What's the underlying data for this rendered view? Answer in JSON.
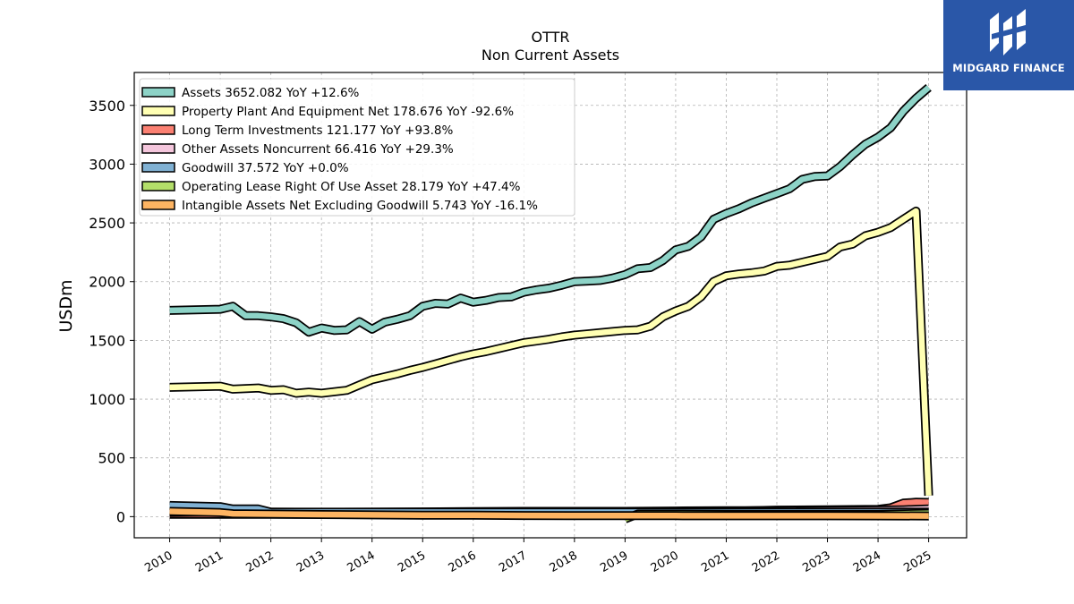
{
  "chart_data": {
    "type": "area",
    "title": "OTTR",
    "subtitle": "Non Current  Assets",
    "ylabel": "USDm",
    "xlabel": "",
    "ylim": [
      -180,
      3780
    ],
    "xlim": [
      2009.3,
      2025.75
    ],
    "yticks": [
      0,
      500,
      1000,
      1500,
      2000,
      2500,
      3000,
      3500
    ],
    "xticks": [
      "2010",
      "2011",
      "2012",
      "2013",
      "2014",
      "2015",
      "2016",
      "2017",
      "2018",
      "2019",
      "2020",
      "2021",
      "2022",
      "2023",
      "2024",
      "2025"
    ],
    "grid": true,
    "legend_position": "top-left",
    "series": [
      {
        "name": "Assets",
        "legend": "Assets  3652.082 YoY +12.6%",
        "color": "#8dd3c7",
        "points": [
          [
            2010.0,
            1755
          ],
          [
            2011.0,
            1765
          ],
          [
            2011.25,
            1790
          ],
          [
            2011.5,
            1710
          ],
          [
            2011.75,
            1710
          ],
          [
            2012.0,
            1700
          ],
          [
            2012.25,
            1685
          ],
          [
            2012.5,
            1650
          ],
          [
            2012.75,
            1570
          ],
          [
            2013.0,
            1605
          ],
          [
            2013.25,
            1585
          ],
          [
            2013.5,
            1590
          ],
          [
            2013.75,
            1660
          ],
          [
            2014.0,
            1595
          ],
          [
            2014.25,
            1655
          ],
          [
            2014.5,
            1680
          ],
          [
            2014.75,
            1710
          ],
          [
            2015.0,
            1790
          ],
          [
            2015.25,
            1815
          ],
          [
            2015.5,
            1810
          ],
          [
            2015.75,
            1860
          ],
          [
            2016.0,
            1825
          ],
          [
            2016.25,
            1840
          ],
          [
            2016.5,
            1865
          ],
          [
            2016.75,
            1870
          ],
          [
            2017.0,
            1910
          ],
          [
            2017.25,
            1930
          ],
          [
            2017.5,
            1945
          ],
          [
            2017.75,
            1970
          ],
          [
            2018.0,
            2000
          ],
          [
            2018.25,
            2005
          ],
          [
            2018.5,
            2010
          ],
          [
            2018.75,
            2030
          ],
          [
            2019.0,
            2060
          ],
          [
            2019.25,
            2110
          ],
          [
            2019.5,
            2120
          ],
          [
            2019.75,
            2180
          ],
          [
            2020.0,
            2270
          ],
          [
            2020.25,
            2300
          ],
          [
            2020.5,
            2380
          ],
          [
            2020.75,
            2530
          ],
          [
            2021.0,
            2580
          ],
          [
            2021.25,
            2620
          ],
          [
            2021.5,
            2670
          ],
          [
            2021.75,
            2710
          ],
          [
            2022.0,
            2750
          ],
          [
            2022.25,
            2790
          ],
          [
            2022.5,
            2870
          ],
          [
            2022.75,
            2895
          ],
          [
            2023.0,
            2900
          ],
          [
            2023.25,
            2980
          ],
          [
            2023.5,
            3080
          ],
          [
            2023.75,
            3170
          ],
          [
            2024.0,
            3230
          ],
          [
            2024.25,
            3310
          ],
          [
            2024.5,
            3450
          ],
          [
            2024.75,
            3560
          ],
          [
            2025.0,
            3652
          ]
        ]
      },
      {
        "name": "Property Plant And Equipment Net",
        "legend": "Property Plant And Equipment Net  178.676 YoY -92.6%",
        "color": "#ffffb3",
        "points": [
          [
            2010.0,
            1100
          ],
          [
            2011.0,
            1110
          ],
          [
            2011.25,
            1085
          ],
          [
            2011.75,
            1095
          ],
          [
            2012.0,
            1075
          ],
          [
            2012.25,
            1080
          ],
          [
            2012.5,
            1050
          ],
          [
            2012.75,
            1060
          ],
          [
            2013.0,
            1050
          ],
          [
            2013.5,
            1075
          ],
          [
            2013.75,
            1120
          ],
          [
            2014.0,
            1165
          ],
          [
            2014.25,
            1190
          ],
          [
            2014.5,
            1215
          ],
          [
            2014.75,
            1245
          ],
          [
            2015.0,
            1270
          ],
          [
            2015.25,
            1300
          ],
          [
            2015.5,
            1330
          ],
          [
            2015.75,
            1360
          ],
          [
            2016.0,
            1385
          ],
          [
            2016.25,
            1405
          ],
          [
            2016.5,
            1430
          ],
          [
            2016.75,
            1455
          ],
          [
            2017.0,
            1480
          ],
          [
            2017.25,
            1495
          ],
          [
            2017.5,
            1510
          ],
          [
            2017.75,
            1530
          ],
          [
            2018.0,
            1545
          ],
          [
            2018.25,
            1555
          ],
          [
            2018.5,
            1565
          ],
          [
            2018.75,
            1575
          ],
          [
            2019.0,
            1585
          ],
          [
            2019.25,
            1590
          ],
          [
            2019.5,
            1620
          ],
          [
            2019.75,
            1700
          ],
          [
            2020.0,
            1750
          ],
          [
            2020.25,
            1790
          ],
          [
            2020.5,
            1870
          ],
          [
            2020.75,
            2000
          ],
          [
            2021.0,
            2050
          ],
          [
            2021.25,
            2065
          ],
          [
            2021.5,
            2075
          ],
          [
            2021.75,
            2090
          ],
          [
            2022.0,
            2130
          ],
          [
            2022.25,
            2140
          ],
          [
            2022.5,
            2165
          ],
          [
            2022.75,
            2190
          ],
          [
            2023.0,
            2215
          ],
          [
            2023.25,
            2295
          ],
          [
            2023.5,
            2320
          ],
          [
            2023.75,
            2390
          ],
          [
            2024.0,
            2420
          ],
          [
            2024.25,
            2460
          ],
          [
            2024.5,
            2530
          ],
          [
            2024.75,
            2600
          ],
          [
            2025.0,
            179
          ]
        ]
      },
      {
        "name": "Long Term Investments",
        "legend": "Long Term Investments  121.177 YoY +93.8%",
        "color": "#fb8072",
        "points": [
          [
            2010.0,
            20
          ],
          [
            2012.0,
            20
          ],
          [
            2014.0,
            20
          ],
          [
            2016.0,
            22
          ],
          [
            2018.0,
            25
          ],
          [
            2020.0,
            30
          ],
          [
            2021.0,
            45
          ],
          [
            2022.0,
            55
          ],
          [
            2023.0,
            58
          ],
          [
            2024.0,
            62
          ],
          [
            2024.25,
            75
          ],
          [
            2024.5,
            115
          ],
          [
            2024.75,
            122
          ],
          [
            2025.0,
            121
          ]
        ]
      },
      {
        "name": "Other Assets Noncurrent",
        "legend": "Other Assets Noncurrent  66.416 YoY +29.3%",
        "color": "#f4c6dc",
        "points": [
          [
            2010.0,
            35
          ],
          [
            2011.0,
            40
          ],
          [
            2012.0,
            38
          ],
          [
            2013.0,
            36
          ],
          [
            2014.0,
            38
          ],
          [
            2015.0,
            40
          ],
          [
            2016.0,
            42
          ],
          [
            2017.0,
            45
          ],
          [
            2018.0,
            45
          ],
          [
            2019.0,
            45
          ],
          [
            2020.0,
            48
          ],
          [
            2021.0,
            50
          ],
          [
            2022.0,
            50
          ],
          [
            2023.0,
            52
          ],
          [
            2024.0,
            55
          ],
          [
            2024.5,
            58
          ],
          [
            2025.0,
            66
          ]
        ]
      },
      {
        "name": "Goodwill",
        "legend": "Goodwill  37.572 YoY +0.0%",
        "color": "#80b1d3",
        "points": [
          [
            2010.0,
            95
          ],
          [
            2011.0,
            85
          ],
          [
            2011.25,
            65
          ],
          [
            2011.75,
            65
          ],
          [
            2012.0,
            38
          ],
          [
            2016.0,
            38
          ],
          [
            2019.0,
            38
          ],
          [
            2022.0,
            38
          ],
          [
            2025.0,
            37.6
          ]
        ]
      },
      {
        "name": "Operating Lease Right Of Use Asset",
        "legend": "Operating Lease Right Of Use Asset  28.179 YoY +47.4%",
        "color": "#b3de69",
        "points": [
          [
            2019.0,
            -20
          ],
          [
            2019.25,
            22
          ],
          [
            2020.0,
            22
          ],
          [
            2021.0,
            20
          ],
          [
            2022.0,
            19
          ],
          [
            2023.0,
            19
          ],
          [
            2024.0,
            19
          ],
          [
            2025.0,
            28
          ]
        ]
      },
      {
        "name": "Intangible Assets Net Excluding Goodwill",
        "legend": "Intangible Assets Net Excluding Goodwill  5.743 YoY -16.1%",
        "color": "#fdb462",
        "points": [
          [
            2010.0,
            45
          ],
          [
            2011.0,
            35
          ],
          [
            2011.25,
            25
          ],
          [
            2012.0,
            22
          ],
          [
            2013.0,
            18
          ],
          [
            2014.0,
            15
          ],
          [
            2015.0,
            13
          ],
          [
            2016.0,
            12
          ],
          [
            2017.0,
            10
          ],
          [
            2018.0,
            9
          ],
          [
            2019.0,
            8
          ],
          [
            2020.0,
            8
          ],
          [
            2021.0,
            7
          ],
          [
            2022.0,
            7
          ],
          [
            2023.0,
            7
          ],
          [
            2024.0,
            6.8
          ],
          [
            2025.0,
            5.7
          ]
        ]
      }
    ]
  },
  "watermark": {
    "text": "MIDGARD FINANCE"
  }
}
